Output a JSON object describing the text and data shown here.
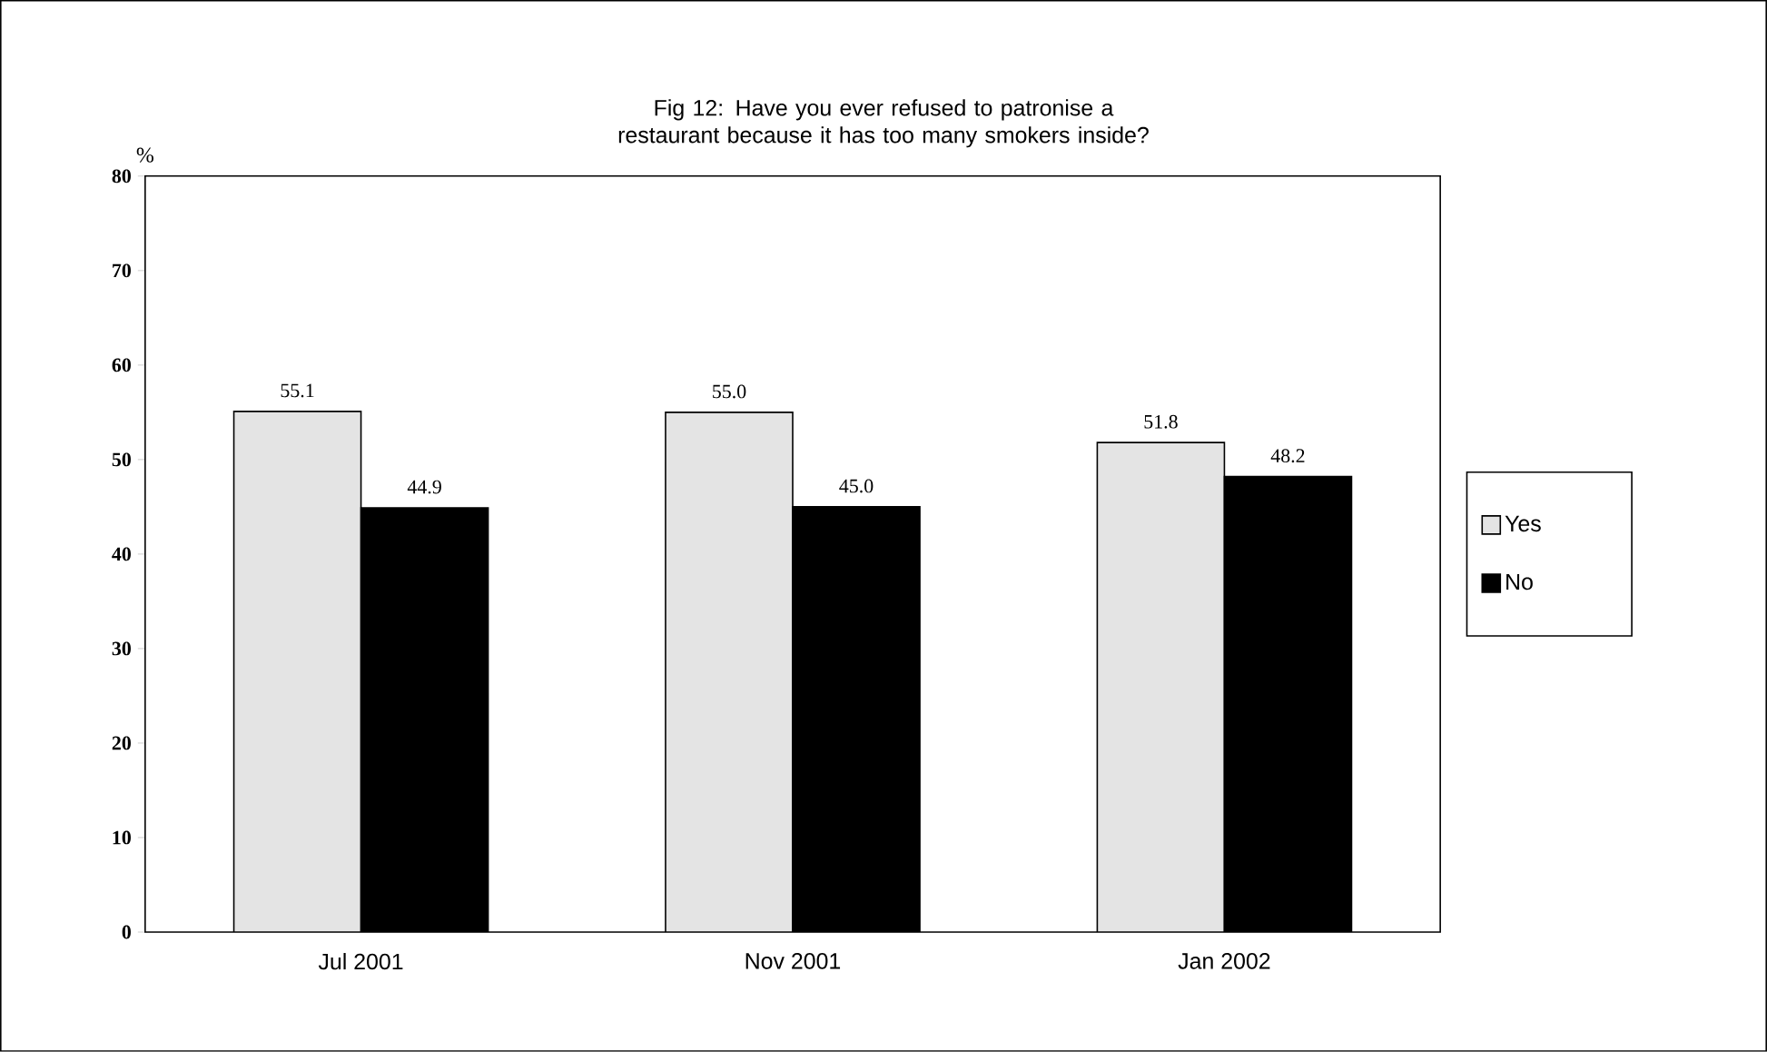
{
  "chart_data": {
    "type": "bar",
    "title": "Fig 12: Have you ever refused to patronise a restaurant because it has too many smokers inside?",
    "ylabel": "%",
    "categories": [
      "Jul 2001",
      "Nov 2001",
      "Jan 2002"
    ],
    "series": [
      {
        "name": "Yes",
        "color": "#e4e4e4",
        "values": [
          55.1,
          55.0,
          51.8
        ],
        "value_labels": [
          "55.1",
          "55.0",
          "51.8"
        ]
      },
      {
        "name": "No",
        "color": "#000000",
        "values": [
          44.9,
          45.0,
          48.2
        ],
        "value_labels": [
          "44.9",
          "45.0",
          "48.2"
        ]
      }
    ],
    "ylim": [
      0,
      80
    ],
    "yticks": [
      0,
      10,
      20,
      30,
      40,
      50,
      60,
      70,
      80
    ],
    "legend": "right",
    "grid": false
  }
}
